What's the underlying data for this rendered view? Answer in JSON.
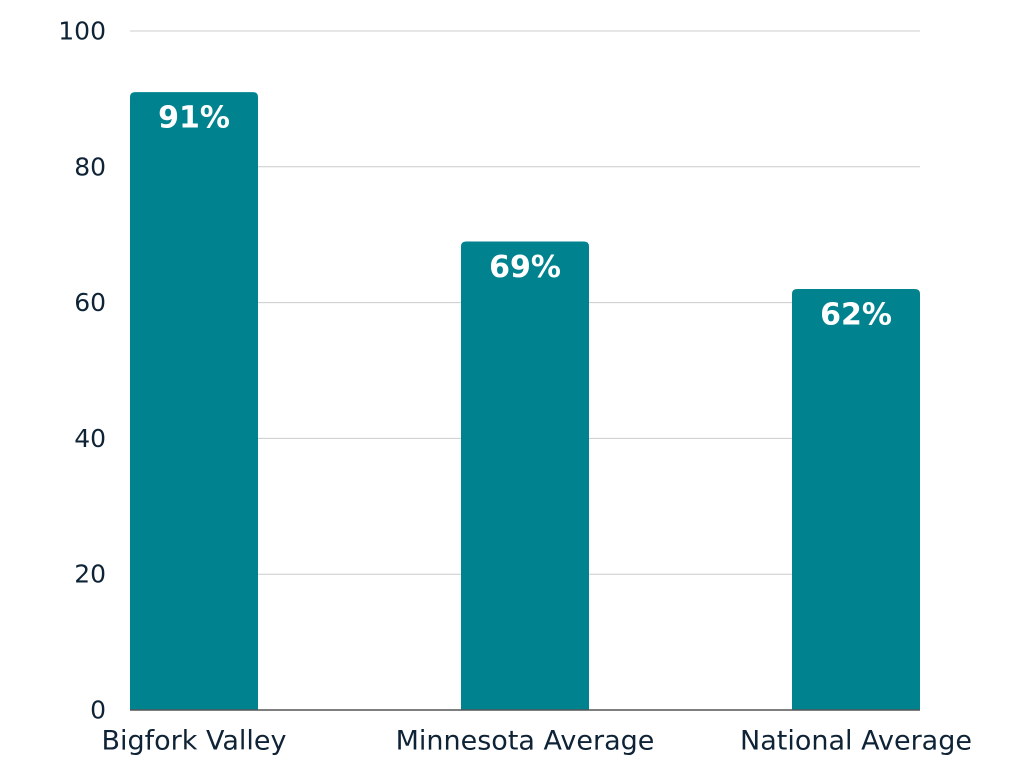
{
  "chart_data": {
    "type": "bar",
    "title": "",
    "xlabel": "",
    "ylabel": "",
    "categories": [
      "Bigfork Valley",
      "Minnesota Average",
      "National Average"
    ],
    "values": [
      91,
      69,
      62
    ],
    "data_labels": [
      "91%",
      "69%",
      "62%"
    ],
    "ylim": [
      0,
      100
    ],
    "yticks": [
      0,
      20,
      40,
      60,
      80,
      100
    ],
    "grid": true,
    "legend": "none",
    "colors": {
      "bar": "#00838f",
      "grid": "#cccccc",
      "axis": "#555555",
      "text": "#0f2336",
      "data_label": "#ffffff"
    }
  }
}
